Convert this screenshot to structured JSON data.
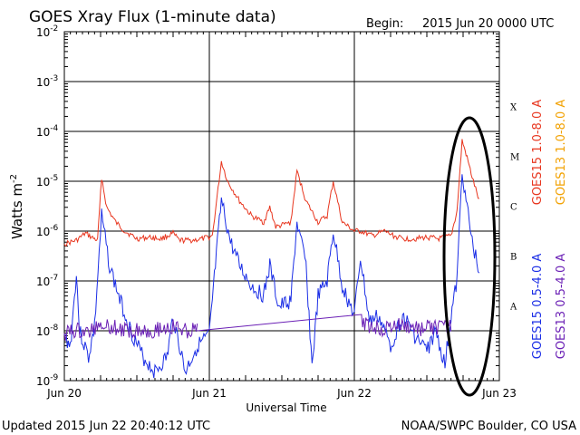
{
  "header": {
    "title": "GOES Xray Flux (1-minute data)",
    "begin_label": "Begin:",
    "begin_value": "2015 Jun 20 0000 UTC"
  },
  "footer": {
    "updated": "Updated 2015 Jun 22 20:40:12 UTC",
    "credit": "NOAA/SWPC Boulder, CO USA"
  },
  "chart_data": {
    "type": "line",
    "title": "GOES Xray Flux (1-minute data)",
    "xlabel": "Universal Time",
    "ylabel": "Watts m",
    "ylabel_exponent": "-2",
    "yscale": "log",
    "ylim": [
      1e-09,
      0.01
    ],
    "xlim": [
      "2015-06-20 00:00",
      "2015-06-23 00:00"
    ],
    "grid": true,
    "x_ticks": [
      "Jun 20",
      "Jun 21",
      "Jun 22",
      "Jun 23"
    ],
    "y_ticks": [
      {
        "base": "10",
        "exp": "-2"
      },
      {
        "base": "10",
        "exp": "-3"
      },
      {
        "base": "10",
        "exp": "-4"
      },
      {
        "base": "10",
        "exp": "-5"
      },
      {
        "base": "10",
        "exp": "-6"
      },
      {
        "base": "10",
        "exp": "-7"
      },
      {
        "base": "10",
        "exp": "-8"
      },
      {
        "base": "10",
        "exp": "-9"
      }
    ],
    "flare_classes": [
      "X",
      "M",
      "C",
      "B",
      "A"
    ],
    "legend_right": [
      {
        "text": "GOES15 1.0-8.0 A",
        "color": "#e8361f"
      },
      {
        "text": "GOES13 1.0-8.0 A",
        "color": "#f2a100"
      }
    ],
    "legend_left": [
      {
        "text": "GOES15 0.5-4.0 A",
        "color": "#1b2ee6"
      },
      {
        "text": "GOES13 0.5-4.0 A",
        "color": "#6a1fb5"
      }
    ],
    "series": [
      {
        "name": "GOES15 1.0-8.0 A",
        "color": "#e8361f",
        "points": [
          [
            "2015-06-20 00:00",
            5.5e-07
          ],
          [
            "2015-06-20 02:00",
            6.5e-07
          ],
          [
            "2015-06-20 03:30",
            9e-07
          ],
          [
            "2015-06-20 04:30",
            7.5e-07
          ],
          [
            "2015-06-20 05:30",
            6.5e-07
          ],
          [
            "2015-06-20 06:10",
            1.2e-05
          ],
          [
            "2015-06-20 07:00",
            3e-06
          ],
          [
            "2015-06-20 08:30",
            1.5e-06
          ],
          [
            "2015-06-20 10:00",
            1e-06
          ],
          [
            "2015-06-20 12:00",
            7e-07
          ],
          [
            "2015-06-20 14:00",
            7.5e-07
          ],
          [
            "2015-06-20 16:00",
            7e-07
          ],
          [
            "2015-06-20 18:00",
            9e-07
          ],
          [
            "2015-06-20 19:00",
            6.5e-07
          ],
          [
            "2015-06-20 21:00",
            6.5e-07
          ],
          [
            "2015-06-20 23:00",
            7e-07
          ],
          [
            "2015-06-21 00:30",
            8e-07
          ],
          [
            "2015-06-21 02:00",
            2.5e-05
          ],
          [
            "2015-06-21 03:00",
            1e-05
          ],
          [
            "2015-06-21 05:00",
            4e-06
          ],
          [
            "2015-06-21 07:00",
            2e-06
          ],
          [
            "2015-06-21 09:00",
            1.5e-06
          ],
          [
            "2015-06-21 10:00",
            3e-06
          ],
          [
            "2015-06-21 11:00",
            1.2e-06
          ],
          [
            "2015-06-21 13:30",
            1.5e-06
          ],
          [
            "2015-06-21 14:30",
            1.6e-05
          ],
          [
            "2015-06-21 16:00",
            4e-06
          ],
          [
            "2015-06-21 18:00",
            1.5e-06
          ],
          [
            "2015-06-21 19:30",
            2e-06
          ],
          [
            "2015-06-21 20:30",
            1e-05
          ],
          [
            "2015-06-21 22:00",
            1.5e-06
          ],
          [
            "2015-06-22 00:00",
            1e-06
          ],
          [
            "2015-06-22 01:00",
            1e-06
          ],
          [
            "2015-06-22 03:00",
            8e-07
          ],
          [
            "2015-06-22 05:00",
            1e-06
          ],
          [
            "2015-06-22 06:30",
            8e-07
          ],
          [
            "2015-06-22 08:00",
            7e-07
          ],
          [
            "2015-06-22 10:00",
            7e-07
          ],
          [
            "2015-06-22 12:00",
            7.5e-07
          ],
          [
            "2015-06-22 14:00",
            7e-07
          ],
          [
            "2015-06-22 16:00",
            8e-07
          ],
          [
            "2015-06-22 17:00",
            2.5e-06
          ],
          [
            "2015-06-22 17:50",
            6.5e-05
          ],
          [
            "2015-06-22 18:30",
            3.5e-05
          ],
          [
            "2015-06-22 19:30",
            1.2e-05
          ],
          [
            "2015-06-22 20:40",
            4e-06
          ]
        ]
      },
      {
        "name": "GOES15 0.5-4.0 A",
        "color": "#1b2ee6",
        "points": [
          [
            "2015-06-20 00:00",
            8e-09
          ],
          [
            "2015-06-20 01:00",
            5e-09
          ],
          [
            "2015-06-20 02:00",
            1.5e-07
          ],
          [
            "2015-06-20 02:30",
            1e-08
          ],
          [
            "2015-06-20 04:00",
            3e-09
          ],
          [
            "2015-06-20 05:00",
            1.2e-08
          ],
          [
            "2015-06-20 06:10",
            2e-06
          ],
          [
            "2015-06-20 07:30",
            2e-07
          ],
          [
            "2015-06-20 09:00",
            5e-08
          ],
          [
            "2015-06-20 11:00",
            1e-08
          ],
          [
            "2015-06-20 13:00",
            3e-09
          ],
          [
            "2015-06-20 15:00",
            1.5e-09
          ],
          [
            "2015-06-20 17:00",
            3e-09
          ],
          [
            "2015-06-20 18:00",
            2e-08
          ],
          [
            "2015-06-20 20:00",
            1.5e-09
          ],
          [
            "2015-06-20 22:00",
            5e-09
          ],
          [
            "2015-06-21 00:00",
            8e-09
          ],
          [
            "2015-06-21 01:00",
            2e-07
          ],
          [
            "2015-06-21 02:00",
            4e-06
          ],
          [
            "2015-06-21 03:30",
            6e-07
          ],
          [
            "2015-06-21 05:00",
            2e-07
          ],
          [
            "2015-06-21 07:00",
            8e-08
          ],
          [
            "2015-06-21 09:00",
            5e-08
          ],
          [
            "2015-06-21 10:00",
            2e-07
          ],
          [
            "2015-06-21 11:30",
            3e-08
          ],
          [
            "2015-06-21 13:30",
            4e-08
          ],
          [
            "2015-06-21 14:30",
            1.5e-06
          ],
          [
            "2015-06-21 16:00",
            2e-07
          ],
          [
            "2015-06-21 17:00",
            2e-09
          ],
          [
            "2015-06-21 18:00",
            5e-08
          ],
          [
            "2015-06-21 19:30",
            1e-07
          ],
          [
            "2015-06-21 20:30",
            1e-06
          ],
          [
            "2015-06-21 22:00",
            8e-08
          ],
          [
            "2015-06-22 00:00",
            2e-08
          ],
          [
            "2015-06-22 01:00",
            3e-07
          ],
          [
            "2015-06-22 02:30",
            1.5e-08
          ],
          [
            "2015-06-22 04:00",
            2e-08
          ],
          [
            "2015-06-22 06:00",
            5e-09
          ],
          [
            "2015-06-22 08:00",
            2e-08
          ],
          [
            "2015-06-22 10:00",
            8e-09
          ],
          [
            "2015-06-22 12:00",
            4e-09
          ],
          [
            "2015-06-22 13:30",
            1e-08
          ],
          [
            "2015-06-22 15:00",
            2e-09
          ],
          [
            "2015-06-22 16:00",
            2e-08
          ],
          [
            "2015-06-22 17:00",
            1e-07
          ],
          [
            "2015-06-22 17:50",
            1.8e-05
          ],
          [
            "2015-06-22 18:30",
            4e-06
          ],
          [
            "2015-06-22 19:30",
            6e-07
          ],
          [
            "2015-06-22 20:40",
            1.5e-07
          ]
        ]
      },
      {
        "name": "GOES13 0.5-4.0 A",
        "color": "#6a1fb5",
        "points": [
          [
            "2015-06-20 00:00",
            9e-09
          ],
          [
            "2015-06-20 02:00",
            1e-08
          ],
          [
            "2015-06-20 04:00",
            9e-09
          ],
          [
            "2015-06-20 06:00",
            1.5e-08
          ],
          [
            "2015-06-20 08:00",
            1.2e-08
          ],
          [
            "2015-06-20 10:00",
            1e-08
          ],
          [
            "2015-06-20 12:00",
            1.1e-08
          ],
          [
            "2015-06-20 14:00",
            1e-08
          ],
          [
            "2015-06-20 16:00",
            1.1e-08
          ],
          [
            "2015-06-20 18:00",
            1.2e-08
          ],
          [
            "2015-06-20 20:00",
            1e-08
          ],
          [
            "2015-06-20 22:00",
            1e-08
          ],
          [
            "2015-06-22 01:00",
            1.5e-08
          ],
          [
            "2015-06-22 03:00",
            1.2e-08
          ],
          [
            "2015-06-22 05:00",
            1.1e-08
          ],
          [
            "2015-06-22 07:00",
            1.3e-08
          ],
          [
            "2015-06-22 09:00",
            1.2e-08
          ],
          [
            "2015-06-22 11:00",
            1.1e-08
          ],
          [
            "2015-06-22 13:00",
            1.2e-08
          ],
          [
            "2015-06-22 15:00",
            1.1e-08
          ],
          [
            "2015-06-22 16:00",
            1.3e-08
          ]
        ]
      }
    ]
  }
}
